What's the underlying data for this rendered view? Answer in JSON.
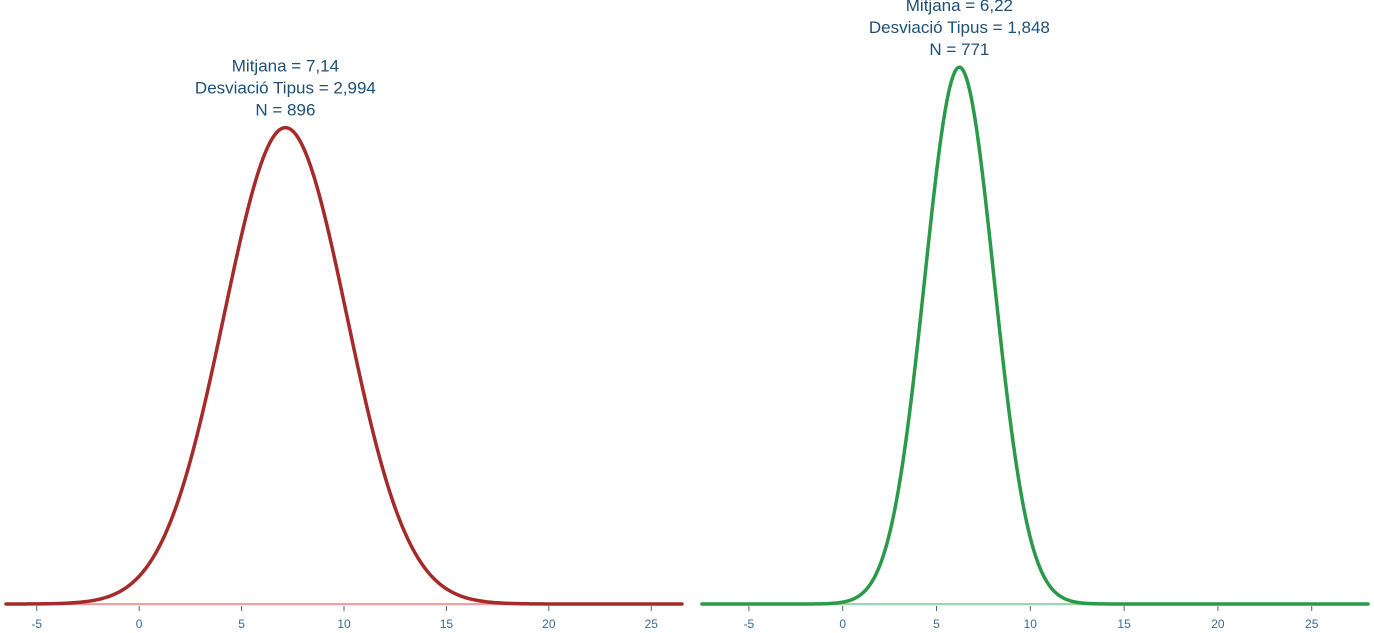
{
  "chart_data": [
    {
      "type": "line",
      "mean": 7.14,
      "sd": 2.994,
      "n": 896,
      "annotation": [
        "Mitjana = 7,14",
        "Desviació Tipus = 2,994",
        "N = 896"
      ],
      "xlim": [
        -6.5,
        26.5
      ],
      "ylim": [
        0,
        0.16
      ],
      "xticks": [
        -5,
        0,
        5,
        10,
        15,
        20,
        25
      ],
      "xtick_labels": [
        "-5",
        "0",
        "5",
        "10",
        "15",
        "20",
        "25"
      ],
      "line_color": "#a52a2a",
      "baseline_color": "#f0a0a0",
      "grid": false
    },
    {
      "type": "line",
      "mean": 6.22,
      "sd": 1.848,
      "n": 771,
      "annotation": [
        "Mitjana = 6,22",
        "Desviació Tipus = 1,848",
        "N = 771"
      ],
      "xlim": [
        -7.5,
        28
      ],
      "ylim": [
        0,
        0.23
      ],
      "xticks": [
        -5,
        0,
        5,
        10,
        15,
        20,
        25
      ],
      "xtick_labels": [
        "-5",
        "0",
        "5",
        "10",
        "15",
        "20",
        "25"
      ],
      "line_color": "#2a9a4a",
      "baseline_color": "#9ad4b0",
      "grid": false
    }
  ]
}
